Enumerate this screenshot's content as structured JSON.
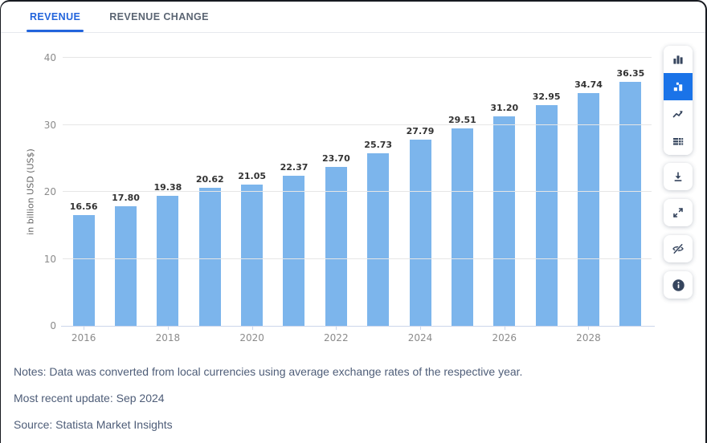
{
  "tabs": {
    "items": [
      {
        "label": "REVENUE",
        "active": true
      },
      {
        "label": "REVENUE CHANGE",
        "active": false
      }
    ]
  },
  "chart_data": {
    "type": "bar",
    "title": "",
    "categories": [
      "2016",
      "2017",
      "2018",
      "2019",
      "2020",
      "2021",
      "2022",
      "2023",
      "2024",
      "2025",
      "2026",
      "2027",
      "2028",
      "2029"
    ],
    "values": [
      16.56,
      17.8,
      19.38,
      20.62,
      21.05,
      22.37,
      23.7,
      25.73,
      27.79,
      29.51,
      31.2,
      32.95,
      34.74,
      36.35
    ],
    "value_labels": [
      "16.56",
      "17.80",
      "19.38",
      "20.62",
      "21.05",
      "22.37",
      "23.70",
      "25.73",
      "27.79",
      "29.51",
      "31.20",
      "32.95",
      "34.74",
      "36.35"
    ],
    "xlabel": "",
    "ylabel": "in billion USD (US$)",
    "ylim": [
      0,
      40
    ],
    "yticks": [
      0,
      10,
      20,
      30,
      40
    ],
    "x_tick_labels": [
      "2016",
      "2018",
      "2020",
      "2022",
      "2024",
      "2026",
      "2028"
    ],
    "grid": true,
    "legend": false,
    "bar_color": "#7cb5ec"
  },
  "toolbar": {
    "chart_type_icons": [
      {
        "icon": "column-chart-icon",
        "active": false
      },
      {
        "icon": "bar-values-chart-icon",
        "active": true
      },
      {
        "icon": "line-chart-icon",
        "active": false
      },
      {
        "icon": "data-table-icon",
        "active": false
      }
    ],
    "action_icons": [
      {
        "icon": "download-icon"
      },
      {
        "icon": "expand-icon"
      },
      {
        "icon": "hide-labels-eye-off-icon"
      },
      {
        "icon": "info-icon"
      }
    ]
  },
  "notes": {
    "notes_line": "Notes: Data was converted from local currencies using average exchange rates of the respective year.",
    "update_line": "Most recent update: Sep 2024",
    "source_line": "Source: Statista Market Insights"
  },
  "colors": {
    "accent_tab": "#2264dc",
    "active_button": "#1a73e8",
    "bar": "#7cb5ec",
    "gridline": "#e6e6e6",
    "axis_line": "#ccd6eb",
    "notes_text": "#4e5d78"
  }
}
